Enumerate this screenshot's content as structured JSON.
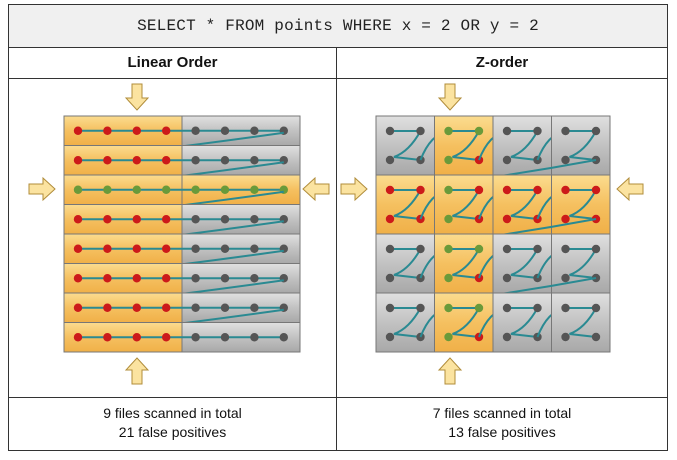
{
  "query": "SELECT * FROM points WHERE x = 2 OR y = 2",
  "panels": [
    {
      "title": "Linear Order",
      "summary_files": "9 files scanned in total",
      "summary_fp": "21 false positives"
    },
    {
      "title": "Z-order",
      "summary_files": "7 files scanned in total",
      "summary_fp": "13 false positives"
    }
  ],
  "colors": {
    "highlight_orange": "#f5c060",
    "gray_cell": "#b8b8b8",
    "match_red": "#cc1a1a",
    "match_green": "#6a9a3a",
    "nonmatch_gray": "#555555",
    "path_teal": "#2a8a92",
    "arrow_fill": "#fbe3a0",
    "arrow_stroke": "#b08c3a"
  }
}
